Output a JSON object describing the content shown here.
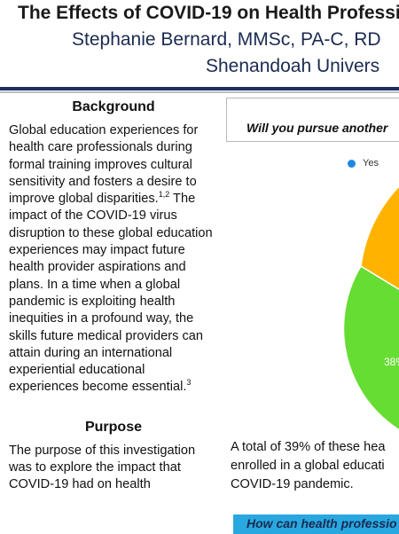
{
  "header": {
    "title": "The Effects of COVID-19 on Health Professi",
    "authors": "Stephanie Bernard, MMSc, PA-C, RD",
    "affiliation": "Shenandoah Univers"
  },
  "background": {
    "heading": "Background",
    "body": "Global education experiences for health care professionals during formal training improves cultural sensitivity and fosters a desire to improve global disparities.",
    "ref1": "1,2",
    "body2": " The impact of the COVID-19 virus disruption to these global education experiences may impact future health provider aspirations and plans. In a time when a global pandemic is exploiting health inequities in a profound way, the skills future medical providers can attain during an international experiential educational experiences become essential.",
    "ref2": "3"
  },
  "purpose": {
    "heading": "Purpose",
    "body": "The purpose of this investigation was to explore the impact that COVID-19 had on health"
  },
  "survey": {
    "question": "Will you pursue another",
    "legend_yes": "Yes",
    "slice_label": "38%",
    "result_line1": "A total of 39% of these hea",
    "result_line2": "enrolled in a global educati",
    "result_line3": "COVID-19 pandemic.",
    "banner": "How can health professio"
  },
  "colors": {
    "navy": "#1e2d5c",
    "yes": "#1e88e5",
    "green": "#66dd33",
    "orange": "#ffb300",
    "banner": "#29a8e0"
  }
}
